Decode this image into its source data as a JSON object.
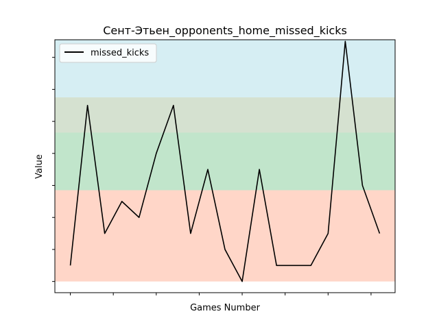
{
  "chart_data": {
    "type": "line",
    "title": "Сент-Этьен_opponents_home_missed_kicks",
    "xlabel": "Games Number",
    "ylabel": "Value",
    "x": [
      0,
      1,
      2,
      3,
      4,
      5,
      6,
      7,
      8,
      9,
      10,
      11,
      12,
      13,
      14,
      15,
      16,
      17,
      18
    ],
    "xlim": [
      -0.9,
      18.9
    ],
    "ylim": [
      -0.35,
      7.55
    ],
    "x_ticks": [
      0,
      2.5,
      5,
      7.5,
      10,
      12.5,
      15,
      17.5
    ],
    "y_ticks": [
      0,
      1,
      2,
      3,
      4,
      5,
      6,
      7
    ],
    "tick_labels_visible": false,
    "series": [
      {
        "name": "missed_kicks",
        "color": "#000000",
        "values": [
          0.5,
          5.5,
          1.5,
          2.5,
          2.0,
          4.0,
          5.5,
          1.5,
          3.5,
          1.0,
          0.0,
          3.5,
          0.5,
          0.5,
          0.5,
          1.5,
          7.5,
          3.0,
          1.5
        ]
      }
    ],
    "bands": [
      {
        "from": 0.0,
        "to": 2.85,
        "color": "#ff5a22",
        "opacity": 0.25
      },
      {
        "from": 2.85,
        "to": 4.65,
        "color": "#22a044",
        "opacity": 0.28
      },
      {
        "from": 4.65,
        "to": 5.75,
        "color": "#88aa77",
        "opacity": 0.35
      },
      {
        "from": 5.75,
        "to": 7.55,
        "color": "#5bbcd0",
        "opacity": 0.25
      }
    ],
    "legend": {
      "position": "top-left"
    },
    "grid": false
  }
}
